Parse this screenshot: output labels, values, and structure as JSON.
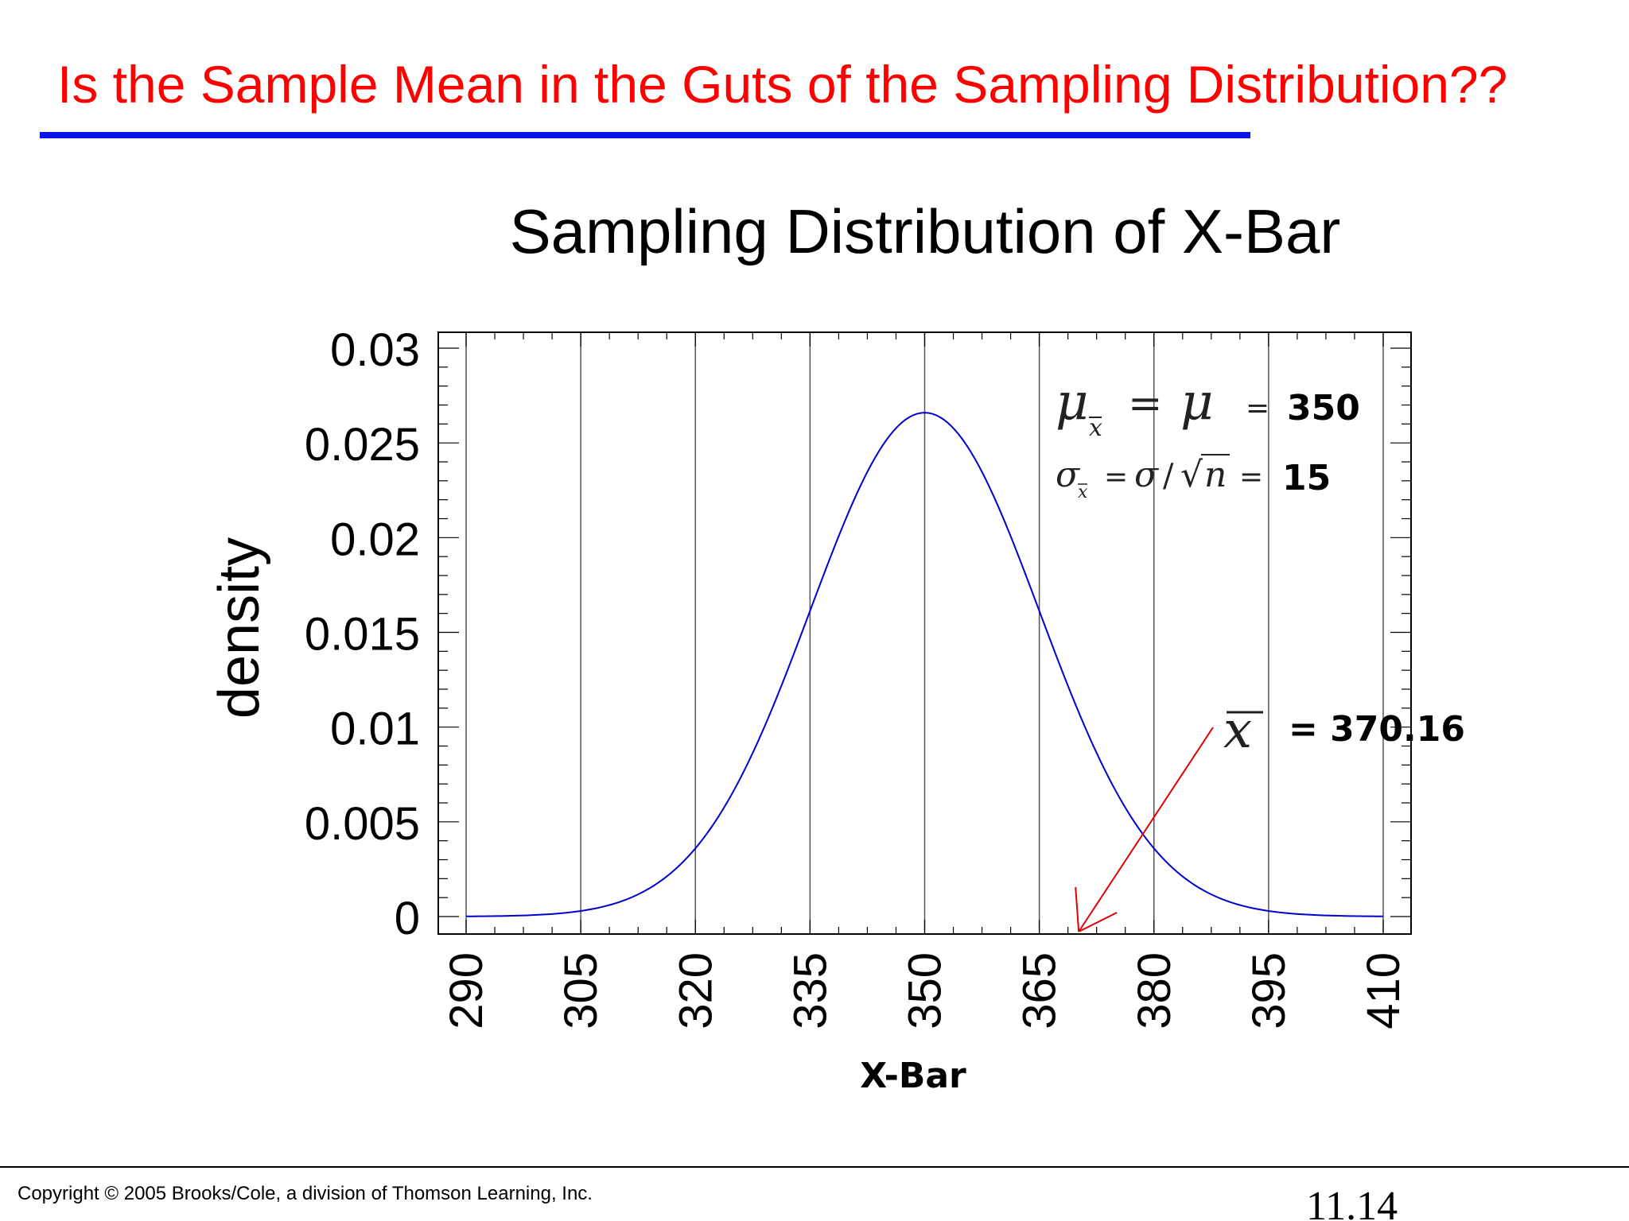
{
  "slide": {
    "title": "Is the Sample Mean in the Guts of the Sampling Distribution??",
    "title_color": "#ff0000",
    "underline_color": "#0a14e6"
  },
  "chart_data": {
    "type": "line",
    "title": "Sampling Distribution of X-Bar",
    "xlabel": "X-Bar",
    "ylabel": "density",
    "xlim": [
      290,
      410
    ],
    "ylim": [
      0,
      0.03
    ],
    "x_ticks": [
      "290",
      "305",
      "320",
      "335",
      "350",
      "365",
      "380",
      "395",
      "410"
    ],
    "y_ticks": [
      "0.03",
      "0.025",
      "0.02",
      "0.015",
      "0.01",
      "0.005",
      "0"
    ],
    "x_tick_values": [
      290,
      305,
      320,
      335,
      350,
      365,
      380,
      395,
      410
    ],
    "y_tick_values": [
      0.03,
      0.025,
      0.02,
      0.015,
      0.01,
      0.005,
      0
    ],
    "vertical_grid": true,
    "series": [
      {
        "mean": 350,
        "sd": 15,
        "color": "#0000cc"
      }
    ],
    "annotations": {
      "mu_value": "350",
      "sigma_value": "15",
      "xbar_value": "= 370.16",
      "arrow_color": "#e00000",
      "arrow_target_x": 370.16
    }
  },
  "footer": {
    "copyright": "Copyright © 2005 Brooks/Cole, a division of Thomson Learning, Inc.",
    "page": "11.14"
  }
}
